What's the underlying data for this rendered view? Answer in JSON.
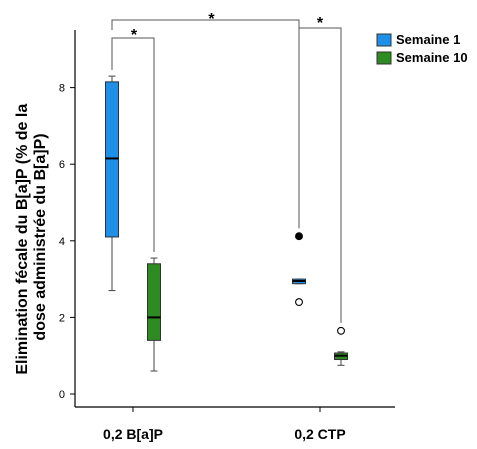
{
  "chart_data": {
    "type": "boxplot",
    "categories": [
      "0,2 B[a]P",
      "0,2 CTP"
    ],
    "ylabel_lines": [
      "Elimination fécale du B[a]P (% de la",
      "dose administrée du B[a]P)"
    ],
    "ylim": [
      -0.3,
      9.5
    ],
    "yticks": [
      0,
      2,
      4,
      6,
      8
    ],
    "grid": false,
    "legend_position": "top-right",
    "series": [
      {
        "name": "Semaine 1",
        "color": "#1e90e8",
        "boxes": [
          {
            "min": 2.7,
            "q1": 4.1,
            "median": 6.15,
            "q3": 8.15,
            "max": 8.3,
            "outliers": []
          },
          {
            "min": 2.88,
            "q1": 2.88,
            "median": 2.95,
            "q3": 3.0,
            "max": 3.0,
            "outliers": [
              {
                "value": 4.12,
                "marker": "filled"
              },
              {
                "value": 2.4,
                "marker": "open"
              }
            ]
          }
        ]
      },
      {
        "name": "Semaine 10",
        "color": "#2e8b22",
        "boxes": [
          {
            "min": 0.6,
            "q1": 1.4,
            "median": 2.0,
            "q3": 3.4,
            "max": 3.55,
            "outliers": []
          },
          {
            "min": 0.75,
            "q1": 0.9,
            "median": 1.0,
            "q3": 1.07,
            "max": 1.1,
            "outliers": [
              {
                "value": 1.65,
                "marker": "open"
              }
            ]
          }
        ]
      }
    ],
    "significance": [
      {
        "label": "*",
        "from": "0,2 B[a]P / Semaine 1",
        "to": "0,2 B[a]P / Semaine 10"
      },
      {
        "label": "*",
        "from": "0,2 B[a]P / Semaine 1",
        "to": "0,2 CTP / Semaine 1"
      },
      {
        "label": "*",
        "from": "0,2 CTP / Semaine 1",
        "to": "0,2 CTP / Semaine 10"
      }
    ]
  }
}
